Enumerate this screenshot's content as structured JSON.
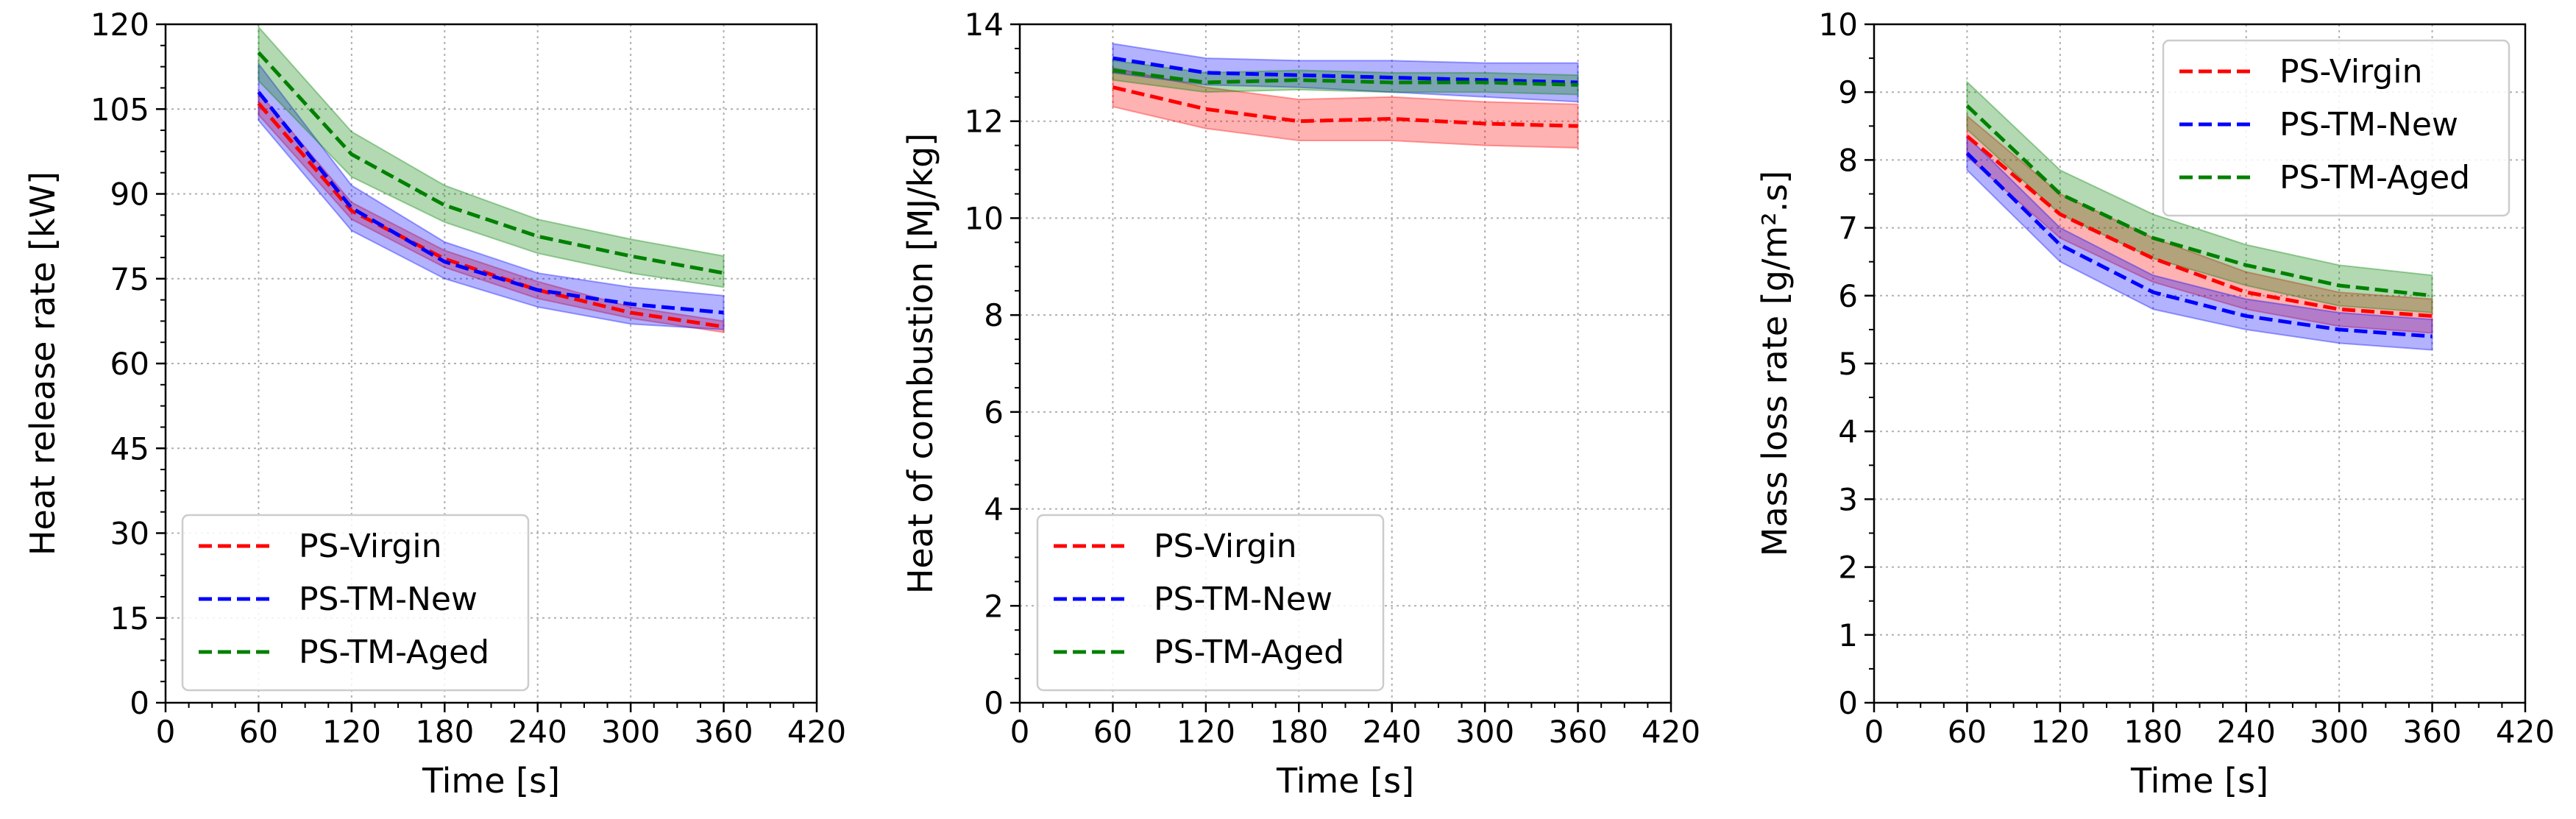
{
  "chart_data": [
    {
      "type": "line",
      "xlabel": "Time [s]",
      "ylabel": "Heat release rate [kW]",
      "xlim": [
        0,
        420
      ],
      "ylim": [
        0,
        120
      ],
      "xticks": [
        0,
        60,
        120,
        180,
        240,
        300,
        360,
        420
      ],
      "yticks": [
        0,
        15,
        30,
        45,
        60,
        75,
        90,
        105,
        120
      ],
      "xtick_labels": [
        "0",
        "60",
        "120",
        "180",
        "240",
        "300",
        "360",
        "420"
      ],
      "ytick_labels": [
        "0",
        "15",
        "30",
        "45",
        "60",
        "75",
        "90",
        "105",
        "120"
      ],
      "grid": true,
      "legend_position": "lower-left",
      "x": [
        60,
        120,
        180,
        240,
        300,
        360
      ],
      "series": [
        {
          "name": "PS-Virgin",
          "color": "#ff0000",
          "values": [
            106,
            87,
            78.5,
            73,
            69,
            66.5
          ],
          "lower": [
            104,
            85.5,
            77,
            71.5,
            68,
            65.5
          ],
          "upper": [
            108,
            88.5,
            80,
            74.5,
            70,
            67.5
          ]
        },
        {
          "name": "PS-TM-New",
          "color": "#0000ff",
          "values": [
            108,
            87.5,
            78,
            73,
            70.5,
            69
          ],
          "lower": [
            103,
            83.5,
            75,
            70,
            67,
            66
          ],
          "upper": [
            113,
            91.5,
            81.5,
            76,
            73.5,
            72
          ]
        },
        {
          "name": "PS-TM-Aged",
          "color": "#008000",
          "values": [
            115,
            97,
            88,
            82.5,
            79,
            76
          ],
          "lower": [
            110,
            93,
            85,
            79.5,
            76,
            73.5
          ],
          "upper": [
            119.5,
            101,
            91.5,
            85.5,
            82,
            79
          ]
        }
      ]
    },
    {
      "type": "line",
      "xlabel": "Time [s]",
      "ylabel": "Heat of combustion [MJ/kg]",
      "xlim": [
        0,
        420
      ],
      "ylim": [
        0,
        14
      ],
      "xticks": [
        0,
        60,
        120,
        180,
        240,
        300,
        360,
        420
      ],
      "yticks": [
        0,
        2,
        4,
        6,
        8,
        10,
        12,
        14
      ],
      "xtick_labels": [
        "0",
        "60",
        "120",
        "180",
        "240",
        "300",
        "360",
        "420"
      ],
      "ytick_labels": [
        "0",
        "2",
        "4",
        "6",
        "8",
        "10",
        "12",
        "14"
      ],
      "grid": true,
      "legend_position": "lower-left",
      "x": [
        60,
        120,
        180,
        240,
        300,
        360
      ],
      "series": [
        {
          "name": "PS-Virgin",
          "color": "#ff0000",
          "values": [
            12.7,
            12.25,
            12.0,
            12.05,
            11.95,
            11.9
          ],
          "lower": [
            12.3,
            11.85,
            11.6,
            11.6,
            11.5,
            11.45
          ],
          "upper": [
            13.1,
            12.7,
            12.45,
            12.5,
            12.4,
            12.35
          ]
        },
        {
          "name": "PS-TM-New",
          "color": "#0000ff",
          "values": [
            13.3,
            13.0,
            12.95,
            12.9,
            12.85,
            12.8
          ],
          "lower": [
            13.0,
            12.75,
            12.7,
            12.6,
            12.5,
            12.4
          ],
          "upper": [
            13.6,
            13.3,
            13.25,
            13.25,
            13.2,
            13.2
          ]
        },
        {
          "name": "PS-TM-Aged",
          "color": "#008000",
          "values": [
            13.05,
            12.8,
            12.85,
            12.8,
            12.8,
            12.75
          ],
          "lower": [
            12.85,
            12.6,
            12.65,
            12.6,
            12.6,
            12.55
          ],
          "upper": [
            13.25,
            13.0,
            13.05,
            13.0,
            13.0,
            12.95
          ]
        }
      ]
    },
    {
      "type": "line",
      "xlabel": "Time [s]",
      "ylabel": "Mass loss rate [g/m².s]",
      "xlim": [
        0,
        420
      ],
      "ylim": [
        0,
        10
      ],
      "xticks": [
        0,
        60,
        120,
        180,
        240,
        300,
        360,
        420
      ],
      "yticks": [
        0,
        1,
        2,
        3,
        4,
        5,
        6,
        7,
        8,
        9,
        10
      ],
      "xtick_labels": [
        "0",
        "60",
        "120",
        "180",
        "240",
        "300",
        "360",
        "420"
      ],
      "ytick_labels": [
        "0",
        "1",
        "2",
        "3",
        "4",
        "5",
        "6",
        "7",
        "8",
        "9",
        "10"
      ],
      "grid": true,
      "legend_position": "top-right",
      "x": [
        60,
        120,
        180,
        240,
        300,
        360
      ],
      "series": [
        {
          "name": "PS-Virgin",
          "color": "#ff0000",
          "values": [
            8.35,
            7.2,
            6.55,
            6.05,
            5.8,
            5.7
          ],
          "lower": [
            8.05,
            6.85,
            6.2,
            5.8,
            5.55,
            5.45
          ],
          "upper": [
            8.65,
            7.5,
            6.85,
            6.35,
            6.05,
            5.95
          ]
        },
        {
          "name": "PS-TM-New",
          "color": "#0000ff",
          "values": [
            8.1,
            6.75,
            6.05,
            5.7,
            5.5,
            5.4
          ],
          "lower": [
            7.85,
            6.5,
            5.8,
            5.5,
            5.3,
            5.2
          ],
          "upper": [
            8.35,
            7.0,
            6.3,
            5.95,
            5.75,
            5.65
          ]
        },
        {
          "name": "PS-TM-Aged",
          "color": "#008000",
          "values": [
            8.8,
            7.5,
            6.85,
            6.45,
            6.15,
            6.0
          ],
          "lower": [
            8.45,
            7.2,
            6.55,
            6.15,
            5.85,
            5.75
          ],
          "upper": [
            9.15,
            7.85,
            7.2,
            6.75,
            6.45,
            6.3
          ]
        }
      ]
    }
  ]
}
